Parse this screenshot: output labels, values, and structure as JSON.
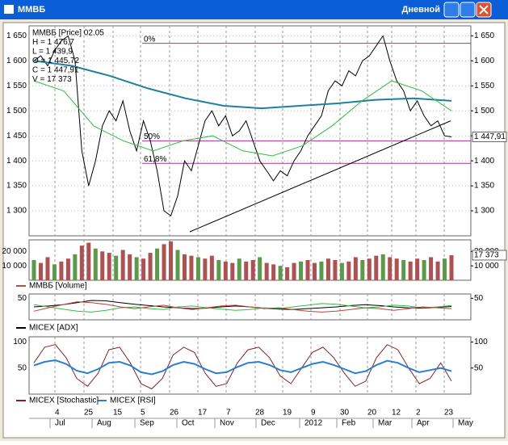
{
  "window": {
    "title": "ММВБ",
    "timeframe": "Дневной"
  },
  "x_axis": {
    "days": [
      "4",
      "25",
      "15",
      "5",
      "26",
      "17",
      "7",
      "28",
      "19",
      "9",
      "30",
      "20",
      "12",
      "2",
      "23"
    ],
    "months": [
      "Jul",
      "Aug",
      "Sep",
      "Oct",
      "Nov",
      "Dec",
      "2012",
      "Feb",
      "Mar",
      "Apr",
      "May"
    ]
  },
  "chart_data": [
    {
      "type": "line",
      "info": [
        "ММВБ [Price] 02.05",
        "H = 1 476,7",
        "L = 1 439,9",
        "O = 1 445,72",
        "C = 1 447,91",
        "V = 17 373"
      ],
      "ylim": [
        1250,
        1670
      ],
      "yticks": [
        {
          "value": 1300,
          "label": "1 300"
        },
        {
          "value": 1350,
          "label": "1 350"
        },
        {
          "value": 1400,
          "label": "1 400"
        },
        {
          "value": 1450,
          "label": "1 450"
        },
        {
          "value": 1500,
          "label": "1 500"
        },
        {
          "value": 1550,
          "label": "1 550"
        },
        {
          "value": 1600,
          "label": "1 600"
        },
        {
          "value": 1650,
          "label": "1 650"
        }
      ],
      "last": {
        "value": 1447.91,
        "label": "1 447,91"
      },
      "annotations": [
        {
          "label": "0%",
          "value": 1635
        },
        {
          "label": "50%",
          "value": 1440
        },
        {
          "label": "61,8%",
          "value": 1395
        }
      ],
      "series": [
        {
          "color": "#000000",
          "values": [
            1600,
            1610,
            1590,
            1620,
            1640,
            1650,
            1600,
            1420,
            1350,
            1400,
            1470,
            1500,
            1480,
            1520,
            1460,
            1420,
            1480,
            1440,
            1380,
            1300,
            1290,
            1330,
            1400,
            1380,
            1430,
            1480,
            1500,
            1470,
            1490,
            1450,
            1460,
            1480,
            1440,
            1400,
            1380,
            1360,
            1380,
            1370,
            1400,
            1420,
            1450,
            1470,
            1490,
            1540,
            1560,
            1550,
            1580,
            1570,
            1600,
            1610,
            1630,
            1650,
            1600,
            1560,
            1540,
            1500,
            1520,
            1490,
            1470,
            1480,
            1450,
            1448
          ]
        },
        {
          "color": "#1f7f9f",
          "values": [
            1600,
            1590,
            1570,
            1545,
            1525,
            1510,
            1505,
            1510,
            1515,
            1522,
            1525,
            1520
          ]
        },
        {
          "color": "#2fbf3f",
          "values": [
            1560,
            1540,
            1470,
            1440,
            1420,
            1440,
            1450,
            1420,
            1410,
            1430,
            1470,
            1520,
            1560,
            1540,
            1500
          ]
        }
      ]
    },
    {
      "type": "bar",
      "ylim": [
        0,
        28000
      ],
      "yticks": [
        {
          "value": 10000,
          "label": "10 000"
        },
        {
          "value": 20000,
          "label": "20 000"
        }
      ],
      "last": {
        "value": 17373,
        "label": "17 373"
      },
      "series": [
        {
          "name": "ММВБ [Volume]",
          "color": "#b05050",
          "values": [
            14000,
            12000,
            16000,
            11000,
            13000,
            15000,
            18000,
            24000,
            26000,
            22000,
            20000,
            19000,
            17000,
            21000,
            18000,
            16000,
            15000,
            19000,
            22000,
            25000,
            27000,
            21000,
            18000,
            17000,
            16000,
            15000,
            17000,
            14000,
            13000,
            12000,
            15000,
            13000,
            14000,
            16000,
            12000,
            11000,
            10000,
            9000,
            12000,
            13000,
            14000,
            12000,
            13000,
            15000,
            14000,
            12000,
            13000,
            16000,
            14000,
            15000,
            17000,
            18000,
            16000,
            15000,
            14000,
            13000,
            15000,
            14000,
            16000,
            13000,
            15000,
            17373
          ]
        }
      ]
    },
    {
      "type": "line",
      "ylim": [
        0,
        60
      ],
      "yticks": [
        50
      ],
      "series": [
        {
          "name": "MICEX [ADX]",
          "color": "#000000",
          "values": [
            30,
            32,
            35,
            40,
            45,
            44,
            40,
            36,
            33,
            30,
            28,
            26,
            27,
            30,
            32,
            30,
            27,
            25,
            24,
            26,
            28,
            30,
            33,
            35,
            33,
            30,
            28,
            27,
            29,
            31
          ]
        },
        {
          "color": "#2fbf3f",
          "values": [
            35,
            30,
            25,
            20,
            18,
            22,
            28,
            30,
            26,
            24,
            30,
            32,
            28,
            25,
            22,
            24,
            28,
            26,
            30,
            34,
            38,
            36,
            32,
            28,
            30,
            34,
            32,
            28,
            30,
            33
          ]
        },
        {
          "color": "#c04040",
          "values": [
            20,
            28,
            35,
            42,
            40,
            36,
            30,
            26,
            30,
            34,
            28,
            24,
            28,
            32,
            34,
            30,
            26,
            28,
            24,
            20,
            18,
            20,
            24,
            28,
            26,
            22,
            26,
            30,
            28,
            26
          ]
        }
      ]
    },
    {
      "type": "line",
      "ylim": [
        0,
        110
      ],
      "yticks": [
        50,
        100
      ],
      "series": [
        {
          "name": "MICEX [Stochastic]",
          "color": "#8b2020",
          "values": [
            60,
            90,
            95,
            70,
            30,
            15,
            40,
            85,
            90,
            60,
            20,
            10,
            30,
            75,
            90,
            80,
            40,
            15,
            20,
            60,
            85,
            90,
            70,
            35,
            20,
            50,
            80,
            90,
            70,
            40,
            15,
            25,
            70,
            95,
            85,
            50,
            20,
            30,
            60,
            25
          ]
        },
        {
          "name": "MICEX [RSI]",
          "color": "#2a7fd0",
          "values": [
            55,
            62,
            65,
            58,
            45,
            40,
            48,
            60,
            62,
            55,
            42,
            38,
            44,
            56,
            62,
            58,
            48,
            40,
            42,
            52,
            60,
            62,
            56,
            46,
            42,
            50,
            58,
            62,
            56,
            48,
            40,
            44,
            56,
            64,
            60,
            50,
            42,
            46,
            50,
            44
          ]
        }
      ]
    }
  ]
}
